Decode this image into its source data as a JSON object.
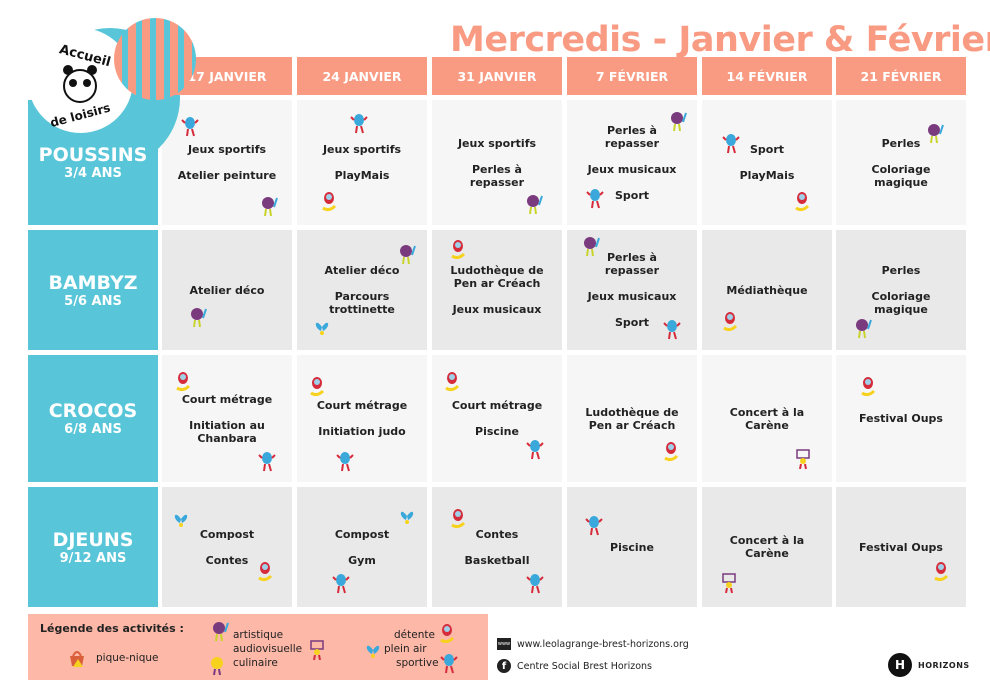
{
  "title": "Mercredis - Janvier & Février",
  "logo": {
    "text_top": "Accueil",
    "text_bottom": "de loisirs"
  },
  "dates": [
    "17 JANVIER",
    "24 JANVIER",
    "31 JANVIER",
    "7 FÉVRIER",
    "14 FÉVRIER",
    "21 FÉVRIER"
  ],
  "colors": {
    "salmon": "#F99A82",
    "blue": "#58C6D8",
    "legend_bg": "#FDB8A8"
  },
  "groups": [
    {
      "name": "POUSSINS",
      "age": "3/4 ANS",
      "cells": [
        {
          "lines": [
            "Jeux sportifs",
            "Atelier peinture"
          ],
          "icons": [
            "sportive",
            "artistique"
          ]
        },
        {
          "lines": [
            "Jeux sportifs",
            "PlayMais"
          ],
          "icons": [
            "sportive",
            "detente"
          ]
        },
        {
          "lines": [
            "Jeux sportifs",
            "Perles à repasser"
          ],
          "icons": [
            "artistique"
          ]
        },
        {
          "lines": [
            "Perles à repasser",
            "Jeux musicaux",
            "Sport"
          ],
          "icons": [
            "artistique",
            "sportive"
          ]
        },
        {
          "lines": [
            "Sport",
            "PlayMais"
          ],
          "icons": [
            "sportive",
            "detente"
          ]
        },
        {
          "lines": [
            "Perles",
            "Coloriage magique"
          ],
          "icons": [
            "artistique"
          ]
        }
      ]
    },
    {
      "name": "BAMBYZ",
      "age": "5/6 ANS",
      "cells": [
        {
          "lines": [
            "Atelier déco"
          ],
          "icons": [
            "artistique"
          ]
        },
        {
          "lines": [
            "Atelier déco",
            "Parcours trottinette"
          ],
          "icons": [
            "artistique",
            "plein-air"
          ]
        },
        {
          "lines": [
            "Ludothèque de Pen ar Créach",
            "Jeux musicaux"
          ],
          "icons": [
            "detente"
          ]
        },
        {
          "lines": [
            "Perles à repasser",
            "Jeux musicaux",
            "Sport"
          ],
          "icons": [
            "artistique",
            "sportive"
          ]
        },
        {
          "lines": [
            "Médiathèque"
          ],
          "icons": [
            "detente"
          ]
        },
        {
          "lines": [
            "Perles",
            "Coloriage magique"
          ],
          "icons": [
            "artistique"
          ]
        }
      ]
    },
    {
      "name": "CROCOS",
      "age": "6/8 ANS",
      "cells": [
        {
          "lines": [
            "Court métrage",
            "Initiation au Chanbara"
          ],
          "icons": [
            "detente",
            "sportive"
          ]
        },
        {
          "lines": [
            "Court métrage",
            "Initiation judo"
          ],
          "icons": [
            "detente",
            "sportive"
          ]
        },
        {
          "lines": [
            "Court métrage",
            "Piscine"
          ],
          "icons": [
            "detente",
            "sportive"
          ]
        },
        {
          "lines": [
            "Ludothèque de Pen ar Créach"
          ],
          "icons": [
            "detente"
          ]
        },
        {
          "lines": [
            "Concert à la Carène"
          ],
          "icons": [
            "audiovisuelle"
          ]
        },
        {
          "lines": [
            "Festival Oups"
          ],
          "icons": [
            "detente"
          ]
        }
      ]
    },
    {
      "name": "DJEUNS",
      "age": "9/12 ANS",
      "cells": [
        {
          "lines": [
            "Compost",
            "Contes"
          ],
          "icons": [
            "plein-air",
            "detente"
          ]
        },
        {
          "lines": [
            "Compost",
            "Gym"
          ],
          "icons": [
            "plein-air",
            "sportive"
          ]
        },
        {
          "lines": [
            "Contes",
            "Basketball"
          ],
          "icons": [
            "detente",
            "sportive"
          ]
        },
        {
          "lines": [
            "Piscine"
          ],
          "icons": [
            "sportive"
          ]
        },
        {
          "lines": [
            "Concert à la Carène"
          ],
          "icons": [
            "audiovisuelle"
          ]
        },
        {
          "lines": [
            "Festival Oups"
          ],
          "icons": [
            "detente"
          ]
        }
      ]
    }
  ],
  "legend": {
    "title": "Légende des activités :",
    "items": {
      "pique_nique": "pique-nique",
      "artistique": "artistique",
      "audiovisuelle": "audiovisuelle",
      "culinaire": "culinaire",
      "detente": "détente",
      "plein_air": "plein air",
      "sportive": "sportive"
    }
  },
  "footer": {
    "website": "www.leolagrange-brest-horizons.org",
    "facebook": "Centre Social Brest Horizons",
    "brand": "HORIZONS"
  }
}
